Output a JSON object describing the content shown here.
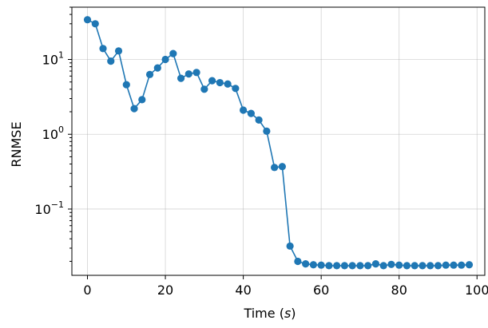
{
  "chart_data": {
    "type": "line",
    "xlabel": "Time (s)",
    "ylabel": "RNMSE",
    "yscale": "log",
    "xlim": [
      -4,
      102
    ],
    "ylim": [
      0.013,
      50
    ],
    "xticks": [
      0,
      20,
      40,
      60,
      80,
      100
    ],
    "yticks": [
      {
        "value": 0.1,
        "base": "10",
        "exp": "−1"
      },
      {
        "value": 1,
        "base": "10",
        "exp": "0"
      },
      {
        "value": 10,
        "base": "10",
        "exp": "1"
      }
    ],
    "grid": true,
    "color": "#1f77b4",
    "marker": "circle",
    "series": [
      {
        "x": [
          0,
          2,
          4,
          6,
          8,
          10,
          12,
          14,
          16,
          18,
          20,
          22,
          24,
          26,
          28,
          30,
          32,
          34,
          36,
          38,
          40,
          42,
          44,
          46,
          48,
          50,
          52,
          54,
          56,
          58,
          60,
          62,
          64,
          66,
          68,
          70,
          72,
          74,
          76,
          78,
          80,
          82,
          84,
          86,
          88,
          90,
          92,
          94,
          96,
          98
        ],
        "values": [
          34,
          30,
          14,
          9.5,
          13,
          4.6,
          2.2,
          2.9,
          6.3,
          7.7,
          10,
          12,
          5.6,
          6.4,
          6.7,
          4.0,
          5.2,
          4.9,
          4.7,
          4.1,
          2.1,
          1.9,
          1.55,
          1.1,
          0.36,
          0.37,
          0.032,
          0.02,
          0.0185,
          0.018,
          0.0178,
          0.0175,
          0.0175,
          0.0175,
          0.0175,
          0.0175,
          0.0175,
          0.0185,
          0.0175,
          0.0182,
          0.0178,
          0.0175,
          0.0175,
          0.0175,
          0.0175,
          0.0175,
          0.0178,
          0.0178,
          0.0178,
          0.018
        ]
      }
    ]
  }
}
